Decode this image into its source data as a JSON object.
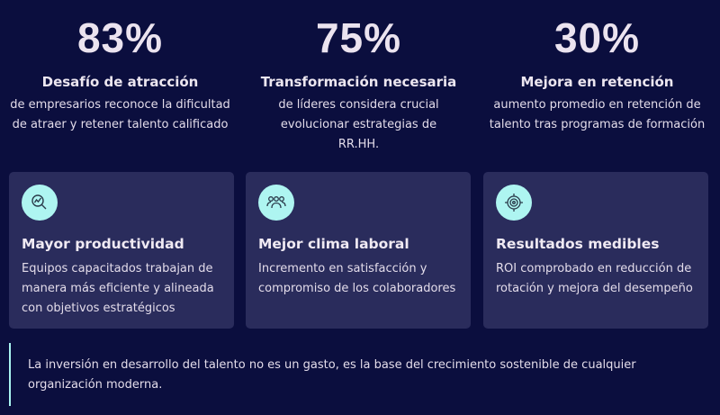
{
  "stats": [
    {
      "value": "83%",
      "title": "Desafío de atracción",
      "desc": "de empresarios reconoce la dificultad de atraer y retener talento calificado"
    },
    {
      "value": "75%",
      "title": "Transformación necesaria",
      "desc": "de líderes considera crucial evolucionar estrategias de RR.HH."
    },
    {
      "value": "30%",
      "title": "Mejora en retención",
      "desc": "aumento promedio en retención de talento tras programas de formación"
    }
  ],
  "cards": [
    {
      "icon": "chart-search-icon",
      "title": "Mayor productividad",
      "desc": "Equipos capacitados trabajan de manera más eficiente y alineada con objetivos estratégicos"
    },
    {
      "icon": "users-icon",
      "title": "Mejor clima laboral",
      "desc": "Incremento en satisfacción y compromiso de los colaboradores"
    },
    {
      "icon": "target-icon",
      "title": "Resultados medibles",
      "desc": "ROI comprobado en reducción de rotación y mejora del desempeño"
    }
  ],
  "quote": "La inversión en desarrollo del talento no es un gasto, es la base del crecimiento sostenible de cualquier organización moderna.",
  "colors": {
    "background": "#0b0e3e",
    "card": "#2a2c5c",
    "accent": "#aef5f1"
  }
}
